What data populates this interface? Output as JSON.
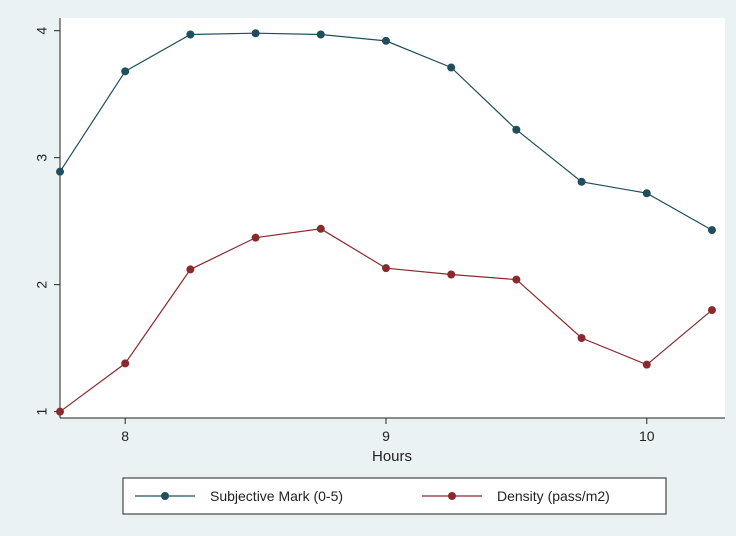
{
  "chart_data": {
    "type": "line",
    "title": "",
    "xlabel": "Hours",
    "ylabel": "",
    "x": [
      7.75,
      8.0,
      8.25,
      8.5,
      8.75,
      9.0,
      9.25,
      9.5,
      9.75,
      10.0,
      10.25
    ],
    "xlim": [
      7.75,
      10.3
    ],
    "ylim": [
      0.95,
      4.1
    ],
    "xticks": [
      8,
      9,
      10
    ],
    "yticks": [
      1,
      2,
      3,
      4
    ],
    "grid": false,
    "legend": "bottom",
    "series": [
      {
        "name": "Subjective Mark (0-5)",
        "color": "#1f4e5c",
        "values": [
          2.89,
          3.68,
          3.97,
          3.98,
          3.97,
          3.92,
          3.71,
          3.22,
          2.81,
          2.72,
          2.43
        ]
      },
      {
        "name": "Density (pass/m2)",
        "color": "#8b2a2e",
        "values": [
          1.0,
          1.38,
          2.12,
          2.37,
          2.44,
          2.13,
          2.08,
          2.04,
          1.58,
          1.37,
          1.8
        ]
      }
    ]
  }
}
